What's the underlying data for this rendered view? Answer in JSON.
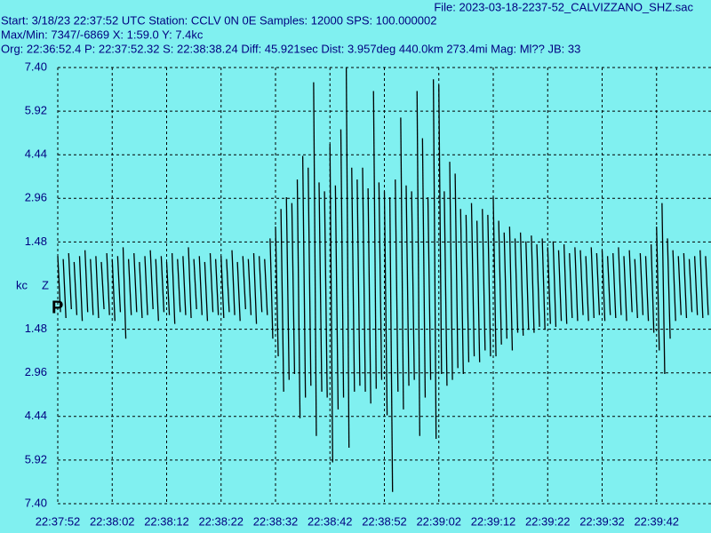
{
  "header": {
    "file": "File: 2023-03-18-2237-52_CALVIZZANO_SHZ.sac",
    "start": "Start: 3/18/23 22:37:52 UTC Station: CCLV 0N 0E Samples: 12000  SPS: 100.000002",
    "maxmin": "Max/Min: 7347/-6869 X: 1:59.0 Y: 7.4kc",
    "org": "Org: 22:36:52.4 P: 22:37:52.32 S: 22:38:38.24 Diff: 45.921sec Dist: 3.957deg 440.0km 273.4mi  Mag: Ml?? JB: 33"
  },
  "chart_data": {
    "type": "line",
    "ylabel": "kc",
    "channel": "Z",
    "phase": "P",
    "color": "#000000",
    "grid": true,
    "xlim": [
      0,
      120
    ],
    "ylim": [
      -7.4,
      7.4
    ],
    "xticks": [
      {
        "value": 0,
        "label": "22:37:52"
      },
      {
        "value": 10,
        "label": "22:38:02"
      },
      {
        "value": 20,
        "label": "22:38:12"
      },
      {
        "value": 30,
        "label": "22:38:22"
      },
      {
        "value": 40,
        "label": "22:38:32"
      },
      {
        "value": 50,
        "label": "22:38:42"
      },
      {
        "value": 60,
        "label": "22:38:52"
      },
      {
        "value": 70,
        "label": "22:39:02"
      },
      {
        "value": 80,
        "label": "22:39:12"
      },
      {
        "value": 90,
        "label": "22:39:22"
      },
      {
        "value": 100,
        "label": "22:39:32"
      },
      {
        "value": 110,
        "label": "22:39:42"
      }
    ],
    "yticks": [
      {
        "value": 7.4,
        "label": "7.40"
      },
      {
        "value": 5.92,
        "label": "5.92"
      },
      {
        "value": 4.44,
        "label": "4.44"
      },
      {
        "value": 2.96,
        "label": "2.96"
      },
      {
        "value": 1.48,
        "label": "1.48"
      },
      {
        "value": -1.48,
        "label": "1.48"
      },
      {
        "value": -2.96,
        "label": "2.96"
      },
      {
        "value": -4.44,
        "label": "4.44"
      },
      {
        "value": -5.92,
        "label": "5.92"
      },
      {
        "value": -7.4,
        "label": "7.40"
      }
    ],
    "x": [
      0,
      1,
      2,
      3,
      4,
      5,
      6,
      7,
      8,
      9,
      10,
      11,
      12,
      13,
      14,
      15,
      16,
      17,
      18,
      19,
      20,
      21,
      22,
      23,
      24,
      25,
      26,
      27,
      28,
      29,
      30,
      31,
      32,
      33,
      34,
      35,
      36,
      37,
      38,
      39,
      40,
      41,
      42,
      43,
      44,
      45,
      46,
      47,
      48,
      49,
      50,
      51,
      52,
      53,
      54,
      55,
      56,
      57,
      58,
      59,
      60,
      61,
      62,
      63,
      64,
      65,
      66,
      67,
      68,
      69,
      70,
      71,
      72,
      73,
      74,
      75,
      76,
      77,
      78,
      79,
      80,
      81,
      82,
      83,
      84,
      85,
      86,
      87,
      88,
      89,
      90,
      91,
      92,
      93,
      94,
      95,
      96,
      97,
      98,
      99,
      100,
      101,
      102,
      103,
      104,
      105,
      106,
      107,
      108,
      109,
      110,
      111,
      112,
      113,
      114,
      115,
      116,
      117,
      118,
      119
    ],
    "upper": [
      1.0,
      0.9,
      1.1,
      0.8,
      1.0,
      1.2,
      0.9,
      1.0,
      0.8,
      1.1,
      0.9,
      1.0,
      1.3,
      0.9,
      1.1,
      0.8,
      1.0,
      1.2,
      0.9,
      1.0,
      0.8,
      1.1,
      0.9,
      1.0,
      1.3,
      0.9,
      1.0,
      0.8,
      1.1,
      0.9,
      1.0,
      0.9,
      1.2,
      0.8,
      1.0,
      0.9,
      1.1,
      1.0,
      0.9,
      1.6,
      2.0,
      2.6,
      3.0,
      2.8,
      3.6,
      4.4,
      4.0,
      6.9,
      3.5,
      3.2,
      4.8,
      3.4,
      5.3,
      7.4,
      4.0,
      3.6,
      4.0,
      3.3,
      6.6,
      3.5,
      3.2,
      3.0,
      3.6,
      5.7,
      3.4,
      3.2,
      6.6,
      5.0,
      3.0,
      7.0,
      6.8,
      3.2,
      4.2,
      3.8,
      2.6,
      2.4,
      2.8,
      2.2,
      2.6,
      2.4,
      3.0,
      2.2,
      1.8,
      2.0,
      1.6,
      1.8,
      1.5,
      1.7,
      1.4,
      1.6,
      1.3,
      1.5,
      1.2,
      1.4,
      1.1,
      1.3,
      1.2,
      1.0,
      1.3,
      1.1,
      1.2,
      1.0,
      1.1,
      1.3,
      1.0,
      1.2,
      0.9,
      1.1,
      1.0,
      1.4,
      2.0,
      2.8,
      1.6,
      1.2,
      1.0,
      1.1,
      0.9,
      1.0,
      1.2,
      1.0
    ],
    "lower": [
      -0.9,
      -1.1,
      -0.8,
      -1.0,
      -1.2,
      -0.9,
      -1.0,
      -1.1,
      -0.8,
      -1.0,
      -1.2,
      -0.9,
      -1.8,
      -1.0,
      -0.9,
      -1.1,
      -1.0,
      -0.8,
      -1.2,
      -0.9,
      -1.0,
      -1.3,
      -0.9,
      -1.0,
      -1.1,
      -0.8,
      -1.0,
      -1.2,
      -0.9,
      -1.0,
      -1.1,
      -0.9,
      -1.0,
      -1.2,
      -0.8,
      -1.0,
      -1.3,
      -0.9,
      -1.0,
      -1.8,
      -2.4,
      -3.6,
      -3.2,
      -3.0,
      -4.5,
      -3.8,
      -3.4,
      -5.1,
      -3.6,
      -3.8,
      -6.0,
      -4.2,
      -3.8,
      -5.5,
      -3.6,
      -3.4,
      -3.6,
      -4.0,
      -3.5,
      -3.2,
      -4.4,
      -7.0,
      -3.6,
      -4.2,
      -3.4,
      -3.2,
      -5.1,
      -3.8,
      -3.2,
      -5.2,
      -3.0,
      -3.4,
      -3.2,
      -2.8,
      -3.0,
      -2.6,
      -2.4,
      -2.6,
      -2.2,
      -2.4,
      -2.4,
      -2.0,
      -1.8,
      -2.2,
      -1.6,
      -1.7,
      -1.5,
      -1.6,
      -1.4,
      -1.5,
      -1.3,
      -1.4,
      -1.2,
      -1.3,
      -1.1,
      -1.2,
      -1.0,
      -1.2,
      -1.1,
      -1.0,
      -1.2,
      -1.0,
      -1.1,
      -1.0,
      -1.2,
      -0.9,
      -1.1,
      -1.0,
      -1.2,
      -1.6,
      -2.2,
      -3.0,
      -1.8,
      -1.2,
      -1.0,
      -1.1,
      -0.9,
      -1.0,
      -1.1,
      -1.0
    ]
  }
}
